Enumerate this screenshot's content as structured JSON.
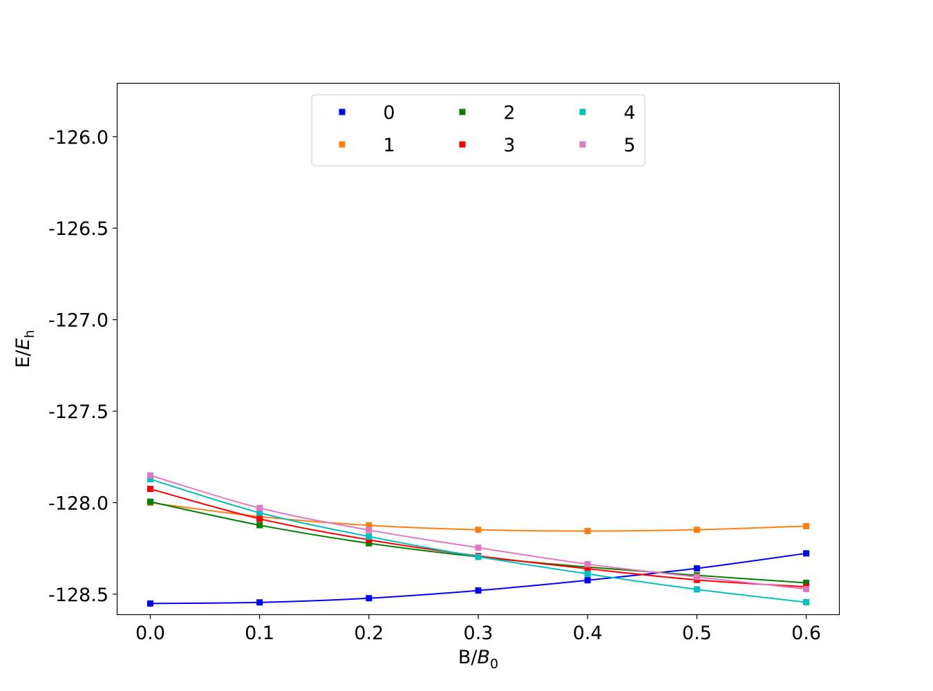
{
  "chart_data": {
    "type": "line",
    "title": "",
    "xlabel": "B/B₀",
    "ylabel": "E/Eₕ",
    "xlabel_main": "B/",
    "xlabel_sym": "B",
    "xlabel_sub": "0",
    "ylabel_main": "E/",
    "ylabel_sym": "E",
    "ylabel_sub": "h",
    "xlim": [
      -0.03,
      0.63
    ],
    "ylim": [
      -128.61,
      -125.71
    ],
    "xticks": [
      0.0,
      0.1,
      0.2,
      0.3,
      0.4,
      0.5,
      0.6
    ],
    "xtick_labels": [
      "0.0",
      "0.1",
      "0.2",
      "0.3",
      "0.4",
      "0.5",
      "0.6"
    ],
    "yticks": [
      -126.0,
      -126.5,
      -127.0,
      -127.5,
      -128.0,
      -128.5
    ],
    "ytick_labels": [
      "-126.0",
      "-126.5",
      "-127.0",
      "-127.5",
      "-128.0",
      "-128.5"
    ],
    "grid": false,
    "legend_position": "top-center",
    "legend_columns": 3,
    "x": [
      0.0,
      0.1,
      0.2,
      0.3,
      0.4,
      0.5,
      0.6
    ],
    "series": [
      {
        "name": "0",
        "color": "#0000ff",
        "values": [
          -128.551,
          -128.545,
          -128.522,
          -128.48,
          -128.424,
          -128.359,
          -128.277
        ]
      },
      {
        "name": "1",
        "color": "#ff7f0e",
        "values": [
          -128.0,
          -128.076,
          -128.124,
          -128.148,
          -128.155,
          -128.148,
          -128.128
        ]
      },
      {
        "name": "2",
        "color": "#008000",
        "values": [
          -127.995,
          -128.123,
          -128.222,
          -128.296,
          -128.352,
          -128.397,
          -128.438
        ]
      },
      {
        "name": "3",
        "color": "#ff0000",
        "values": [
          -127.925,
          -128.088,
          -128.203,
          -128.291,
          -128.361,
          -128.422,
          -128.46
        ]
      },
      {
        "name": "4",
        "color": "#00bfbf",
        "values": [
          -127.872,
          -128.055,
          -128.185,
          -128.295,
          -128.389,
          -128.474,
          -128.544
        ]
      },
      {
        "name": "5",
        "color": "#e377c2",
        "values": [
          -127.851,
          -128.029,
          -128.15,
          -128.246,
          -128.336,
          -128.406,
          -128.472
        ]
      }
    ]
  }
}
